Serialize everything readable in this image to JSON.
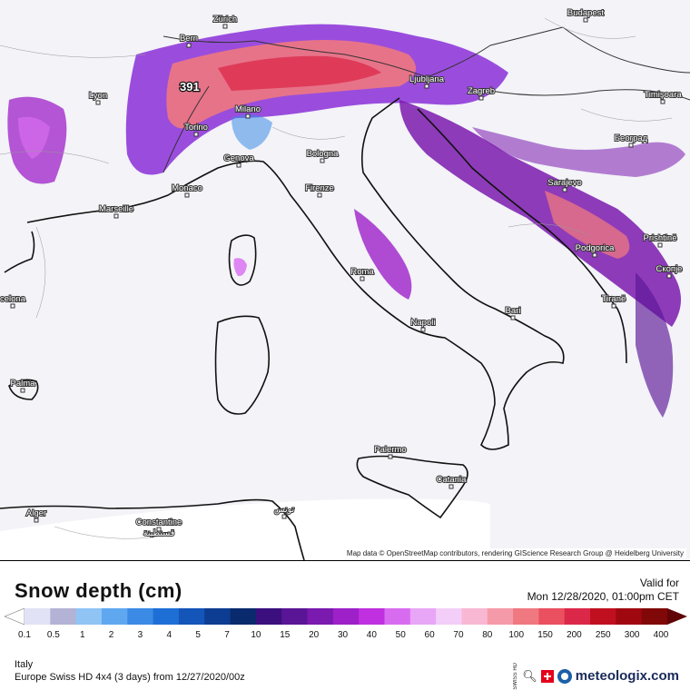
{
  "map": {
    "attribution": "Map data © OpenStreetMap contributors, rendering GIScience Research Group @ Heidelberg University",
    "peak_label": "391",
    "cities": [
      {
        "name": "Zürich",
        "id": "zurich"
      },
      {
        "name": "Bern",
        "id": "bern"
      },
      {
        "name": "Budapest",
        "id": "budapest"
      },
      {
        "name": "Lyon",
        "id": "lyon"
      },
      {
        "name": "Milano",
        "id": "milano"
      },
      {
        "name": "Ljubljana",
        "id": "ljubljana"
      },
      {
        "name": "Zagreb",
        "id": "zagreb"
      },
      {
        "name": "Timişoara",
        "id": "timisoara"
      },
      {
        "name": "Torino",
        "id": "torino"
      },
      {
        "name": "Београд",
        "id": "beograd"
      },
      {
        "name": "Genova",
        "id": "genova"
      },
      {
        "name": "Bologna",
        "id": "bologna"
      },
      {
        "name": "Monaco",
        "id": "monaco"
      },
      {
        "name": "Firenze",
        "id": "firenze"
      },
      {
        "name": "Sarajevo",
        "id": "sarajevo"
      },
      {
        "name": "Marseille",
        "id": "marseille"
      },
      {
        "name": "Podgorica",
        "id": "podgorica"
      },
      {
        "name": "Prishtinë",
        "id": "prishtine"
      },
      {
        "name": "Roma",
        "id": "roma"
      },
      {
        "name": "Скопје",
        "id": "skopje"
      },
      {
        "name": "celona",
        "id": "barcelona"
      },
      {
        "name": "Tiranë",
        "id": "tirane"
      },
      {
        "name": "Bari",
        "id": "bari"
      },
      {
        "name": "Napoli",
        "id": "napoli"
      },
      {
        "name": "Palma",
        "id": "palma"
      },
      {
        "name": "Palermo",
        "id": "palermo"
      },
      {
        "name": "Catania",
        "id": "catania"
      },
      {
        "name": "Alger",
        "id": "alger"
      },
      {
        "name": "تونس",
        "id": "tunis"
      },
      {
        "name": "Constantine",
        "id": "constantine"
      },
      {
        "name": "قسنطينة",
        "id": "constantine-ar"
      }
    ]
  },
  "legend": {
    "title": "Snow depth (cm)",
    "valid_label": "Valid for",
    "valid_time": "Mon 12/28/2020, 01:00pm CET",
    "ticks": [
      "0.1",
      "0.5",
      "1",
      "2",
      "3",
      "4",
      "5",
      "7",
      "10",
      "15",
      "20",
      "30",
      "40",
      "50",
      "60",
      "70",
      "80",
      "100",
      "150",
      "200",
      "250",
      "300",
      "400"
    ],
    "colors": [
      "#ffffff",
      "#e2e2f6",
      "#b3b3d6",
      "#8fc4f5",
      "#5fa8f0",
      "#3b8ae6",
      "#1d6fd6",
      "#1355b8",
      "#0d3d92",
      "#0a2a6e",
      "#3b0f7e",
      "#5a1596",
      "#7a1aae",
      "#9d20c8",
      "#c030e0",
      "#d86cf0",
      "#e8a6f6",
      "#f3cef8",
      "#f8b8d4",
      "#f59aa8",
      "#f07880",
      "#ea5060",
      "#dc2848",
      "#c01020",
      "#a00810",
      "#800808",
      "#600408"
    ]
  },
  "footer": {
    "region": "Italy",
    "model": "Europe Swiss HD 4x4 (3 days) from 12/27/2020/00z",
    "swiss_hd": "SWISS HD",
    "brand": "meteologix.com"
  }
}
